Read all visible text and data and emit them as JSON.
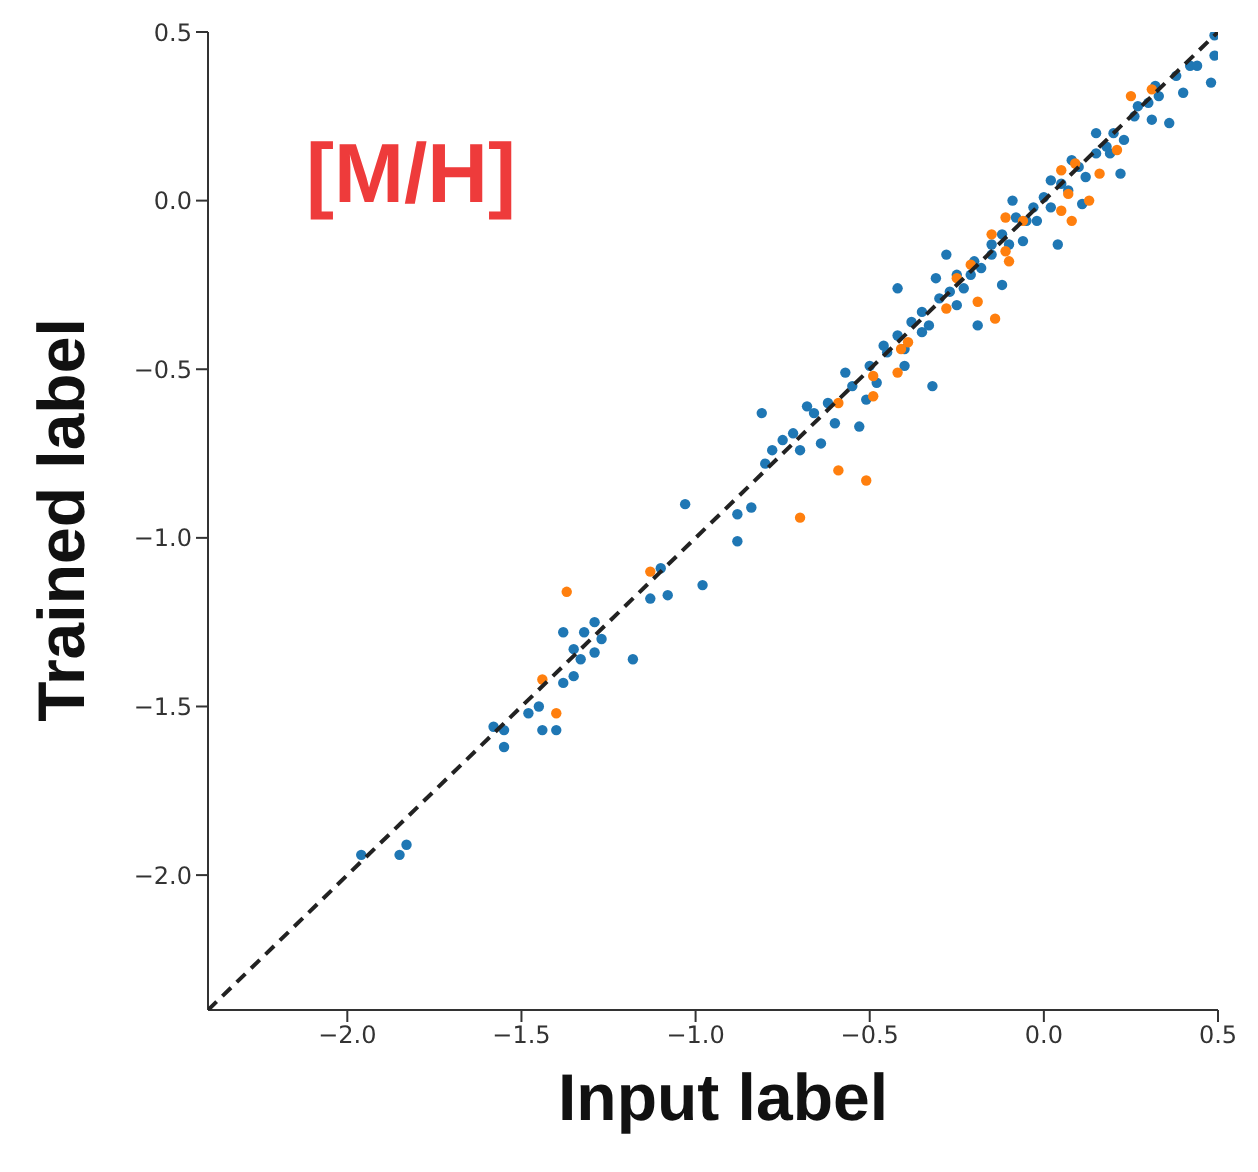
{
  "chart_data": {
    "type": "scatter",
    "xlabel": "Input label",
    "ylabel": "Trained label",
    "annotations": [
      "[M/H]"
    ],
    "xlim": [
      -2.4,
      0.5
    ],
    "ylim": [
      -2.4,
      0.5
    ],
    "xticks": [
      {
        "value": -2,
        "label": "−2.0"
      },
      {
        "value": -1.5,
        "label": "−1.5"
      },
      {
        "value": -1,
        "label": "−1.0"
      },
      {
        "value": -0.5,
        "label": "−0.5"
      },
      {
        "value": 0,
        "label": "0.0"
      },
      0.5
    ],
    "yticks": [
      {
        "value": -2,
        "label": "−2.0"
      },
      {
        "value": -1.5,
        "label": "−1.5"
      },
      {
        "value": -1,
        "label": "−1.0"
      },
      {
        "value": -0.5,
        "label": "−0.5"
      },
      {
        "value": 0,
        "label": "0.0"
      },
      0.5
    ],
    "marker": "circle",
    "series": [
      {
        "type": "scatter",
        "color": "#1f77b4",
        "x": [
          -1.03,
          -0.88,
          -0.84,
          -0.88,
          -0.98,
          -1.1,
          -1.13,
          -1.08,
          -1.38,
          -1.32,
          -1.29,
          -1.27,
          -1.35,
          -1.33,
          -1.29,
          -1.18,
          -1.35,
          -1.38,
          -1.45,
          -1.48,
          -1.58,
          -1.55,
          -1.44,
          -1.4,
          -1.55,
          -1.96,
          -1.85,
          -1.83,
          -0.81,
          -0.8,
          -0.75,
          -0.68,
          -0.64,
          -0.57,
          -0.53,
          -0.51,
          -0.46,
          -0.42,
          -0.4,
          -0.35,
          -0.32,
          -0.31,
          -0.28,
          -0.25,
          -0.19,
          -0.21,
          -0.15,
          -0.12,
          -0.09,
          -0.06,
          -0.02,
          0.02,
          0.04,
          0.08,
          0.11,
          0.15,
          0.19,
          0.22,
          0.27,
          0.31,
          0.32,
          0.36,
          0.4,
          0.42,
          0.48,
          0.49,
          0.49,
          -0.78,
          -0.72,
          -0.7,
          -0.66,
          -0.62,
          -0.6,
          -0.55,
          -0.5,
          -0.48,
          -0.45,
          -0.42,
          -0.4,
          -0.38,
          -0.35,
          -0.33,
          -0.3,
          -0.27,
          -0.25,
          -0.23,
          -0.2,
          -0.18,
          -0.15,
          -0.12,
          -0.1,
          -0.08,
          -0.05,
          -0.03,
          0.0,
          0.02,
          0.05,
          0.07,
          0.1,
          0.12,
          0.15,
          0.18,
          0.2,
          0.23,
          0.26,
          0.3,
          0.33,
          0.38,
          0.44
        ],
        "values": [
          -0.9,
          -0.93,
          -0.91,
          -1.01,
          -1.14,
          -1.09,
          -1.18,
          -1.17,
          -1.28,
          -1.28,
          -1.25,
          -1.3,
          -1.33,
          -1.36,
          -1.34,
          -1.36,
          -1.41,
          -1.43,
          -1.5,
          -1.52,
          -1.56,
          -1.57,
          -1.57,
          -1.57,
          -1.62,
          -1.94,
          -1.94,
          -1.91,
          -0.63,
          -0.78,
          -0.71,
          -0.61,
          -0.72,
          -0.51,
          -0.67,
          -0.59,
          -0.43,
          -0.26,
          -0.49,
          -0.39,
          -0.55,
          -0.23,
          -0.16,
          -0.31,
          -0.37,
          -0.22,
          -0.13,
          -0.25,
          0.0,
          -0.12,
          -0.06,
          0.06,
          -0.13,
          0.12,
          -0.01,
          0.2,
          0.14,
          0.08,
          0.28,
          0.24,
          0.34,
          0.23,
          0.32,
          0.4,
          0.35,
          0.43,
          0.49,
          -0.74,
          -0.69,
          -0.74,
          -0.63,
          -0.6,
          -0.66,
          -0.55,
          -0.49,
          -0.54,
          -0.45,
          -0.4,
          -0.44,
          -0.36,
          -0.33,
          -0.37,
          -0.29,
          -0.27,
          -0.22,
          -0.26,
          -0.18,
          -0.2,
          -0.16,
          -0.1,
          -0.13,
          -0.05,
          -0.06,
          -0.02,
          0.01,
          -0.02,
          0.05,
          0.03,
          0.1,
          0.07,
          0.14,
          0.16,
          0.2,
          0.18,
          0.25,
          0.29,
          0.31,
          0.37,
          0.4
        ]
      },
      {
        "type": "scatter",
        "color": "#ff7f0e",
        "x": [
          -0.59,
          -0.51,
          -0.7,
          -1.13,
          -1.37,
          -1.44,
          -1.4,
          0.25,
          0.31,
          0.21,
          0.16,
          0.09,
          0.05,
          0.07,
          0.13,
          0.05,
          0.08,
          -0.06,
          -0.11,
          -0.15,
          -0.11,
          -0.1,
          -0.21,
          -0.25,
          -0.28,
          -0.19,
          -0.14,
          -0.39,
          -0.41,
          -0.42,
          -0.49,
          -0.49,
          -0.59
        ],
        "values": [
          -0.8,
          -0.83,
          -0.94,
          -1.1,
          -1.16,
          -1.42,
          -1.52,
          0.31,
          0.33,
          0.15,
          0.08,
          0.11,
          0.09,
          0.02,
          0.0,
          -0.03,
          -0.06,
          -0.06,
          -0.05,
          -0.1,
          -0.15,
          -0.18,
          -0.19,
          -0.23,
          -0.32,
          -0.3,
          -0.35,
          -0.42,
          -0.44,
          -0.51,
          -0.52,
          -0.58,
          -0.6
        ]
      },
      {
        "type": "line",
        "color": "#222222",
        "line_style": "dashed",
        "marker": "none",
        "x": [
          -2.4,
          0.5
        ],
        "values": [
          -2.4,
          0.5
        ]
      }
    ]
  }
}
